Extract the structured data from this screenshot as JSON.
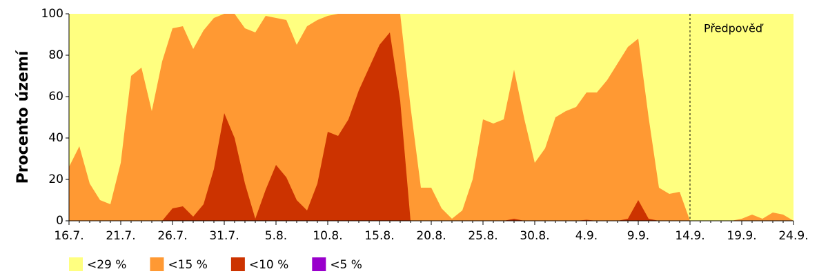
{
  "chart_data": {
    "type": "area",
    "y_label": "Procento území",
    "categories": [
      "16.7.",
      null,
      null,
      null,
      null,
      "21.7.",
      null,
      null,
      null,
      null,
      "26.7.",
      null,
      null,
      null,
      null,
      "31.7.",
      null,
      null,
      null,
      null,
      "5.8.",
      null,
      null,
      null,
      null,
      "10.8.",
      null,
      null,
      null,
      null,
      "15.8.",
      null,
      null,
      null,
      null,
      "20.8.",
      null,
      null,
      null,
      null,
      "25.8.",
      null,
      null,
      null,
      null,
      "30.8.",
      null,
      null,
      null,
      null,
      "4.9.",
      null,
      null,
      null,
      null,
      "9.9.",
      null,
      null,
      null,
      null,
      "14.9.",
      null,
      null,
      null,
      null,
      "19.9.",
      null,
      null,
      null,
      null,
      "24.9."
    ],
    "series": [
      {
        "name": "<29 %",
        "color": "#ffff80",
        "values": [
          100,
          100,
          100,
          100,
          100,
          100,
          100,
          100,
          100,
          100,
          100,
          100,
          100,
          100,
          100,
          100,
          100,
          100,
          100,
          100,
          100,
          100,
          100,
          100,
          100,
          100,
          100,
          100,
          100,
          100,
          100,
          100,
          100,
          100,
          100,
          100,
          100,
          100,
          100,
          100,
          100,
          100,
          100,
          100,
          100,
          100,
          100,
          100,
          100,
          100,
          100,
          100,
          100,
          100,
          100,
          100,
          100,
          100,
          100,
          100,
          100,
          100,
          100,
          100,
          100,
          100,
          100,
          100,
          100,
          100,
          100
        ]
      },
      {
        "name": "<15 %",
        "color": "#ff9933",
        "values": [
          26,
          36,
          18,
          10,
          8,
          28,
          70,
          74,
          53,
          77,
          93,
          94,
          83,
          92,
          98,
          100,
          100,
          93,
          91,
          99,
          98,
          97,
          85,
          94,
          97,
          99,
          100,
          100,
          100,
          100,
          100,
          100,
          100,
          55,
          16,
          16,
          6,
          1,
          5,
          20,
          49,
          47,
          49,
          73,
          49,
          28,
          35,
          50,
          53,
          55,
          62,
          62,
          68,
          76,
          84,
          88,
          50,
          16,
          13,
          14,
          0,
          0,
          0,
          0,
          0,
          1,
          3,
          1,
          4,
          3,
          0
        ]
      },
      {
        "name": "<10 %",
        "color": "#cc3300",
        "values": [
          0,
          0,
          0,
          0,
          0,
          0,
          0,
          0,
          0,
          0,
          6,
          7,
          2,
          8,
          25,
          52,
          40,
          18,
          1,
          15,
          27,
          21,
          10,
          5,
          18,
          43,
          41,
          49,
          63,
          74,
          85,
          91,
          58,
          0,
          0,
          0,
          0,
          0,
          0,
          0,
          0,
          0,
          0,
          1,
          0,
          0,
          0,
          0,
          0,
          0,
          0.5,
          0,
          0,
          0,
          1,
          10,
          1,
          0,
          0,
          0,
          0,
          0,
          0,
          0,
          0,
          0,
          0,
          0,
          0,
          0,
          0
        ]
      },
      {
        "name": "<5 %",
        "color": "#9900cc",
        "values": [
          0,
          0,
          0,
          0,
          0,
          0,
          0,
          0,
          0,
          0,
          0,
          0,
          0,
          0,
          0,
          0,
          0,
          0,
          0,
          0,
          0,
          0,
          0,
          0,
          0,
          0,
          0,
          0,
          0,
          0,
          0,
          0,
          0,
          0,
          0,
          0,
          0,
          0,
          0,
          0,
          0,
          0,
          0,
          0,
          0,
          0,
          0,
          0,
          0,
          0,
          0,
          0,
          0,
          0,
          0,
          0,
          0,
          0,
          0,
          0,
          0,
          0,
          0,
          0,
          0,
          0,
          0,
          0,
          0,
          0,
          0
        ]
      }
    ],
    "ylim": [
      0,
      100
    ],
    "yticks": [
      0,
      20,
      40,
      60,
      80,
      100
    ],
    "grid": false,
    "annotation": {
      "text": "Předpověď",
      "x": "14.9."
    },
    "legend": "bottom"
  }
}
